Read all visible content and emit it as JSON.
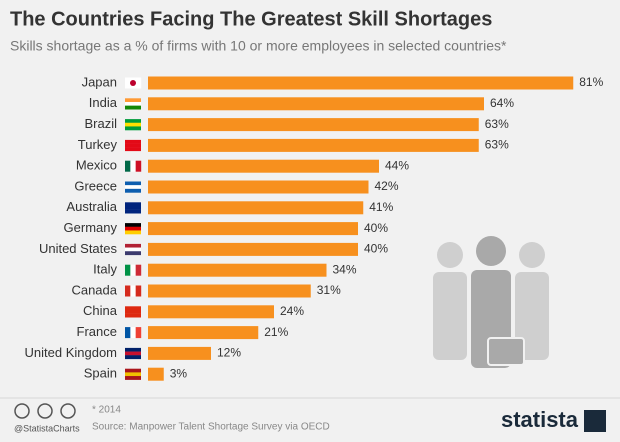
{
  "chart_data": {
    "type": "bar",
    "orientation": "horizontal",
    "title": "The Countries Facing The Greatest Skill Shortages",
    "subtitle": "Skills shortage as a % of firms with 10 or more employees in selected countries*",
    "categories": [
      "Japan",
      "India",
      "Brazil",
      "Turkey",
      "Mexico",
      "Greece",
      "Australia",
      "Germany",
      "United States",
      "Italy",
      "Canada",
      "China",
      "France",
      "United Kingdom",
      "Spain"
    ],
    "values": [
      81,
      64,
      63,
      63,
      44,
      42,
      41,
      40,
      40,
      34,
      31,
      24,
      21,
      12,
      3
    ],
    "value_labels": [
      "81%",
      "64%",
      "63%",
      "63%",
      "44%",
      "42%",
      "41%",
      "40%",
      "40%",
      "34%",
      "31%",
      "24%",
      "21%",
      "12%",
      "3%"
    ],
    "color": "#f7901e",
    "footnote": "* 2014",
    "source": "Source: Manpower Talent Shortage Survey via OECD",
    "credit": "@StatistaCharts",
    "brand": "statista"
  }
}
